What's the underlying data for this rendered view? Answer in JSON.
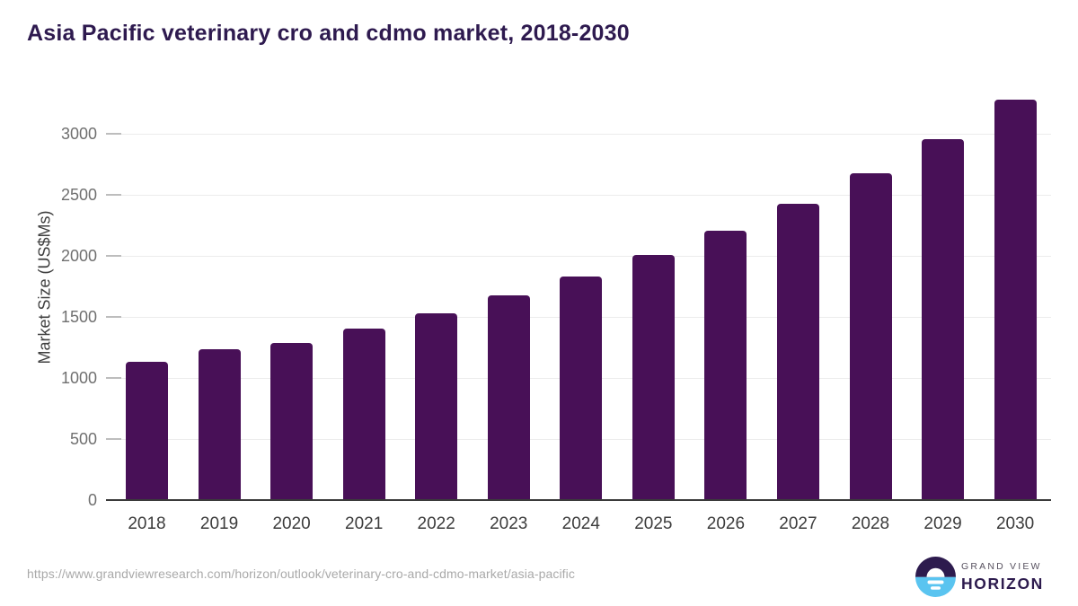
{
  "chart_data": {
    "type": "bar",
    "title": "Asia Pacific veterinary cro and cdmo market, 2018-2030",
    "categories": [
      "2018",
      "2019",
      "2020",
      "2021",
      "2022",
      "2023",
      "2024",
      "2025",
      "2026",
      "2027",
      "2028",
      "2029",
      "2030"
    ],
    "values": [
      1130,
      1235,
      1290,
      1405,
      1530,
      1675,
      1830,
      2005,
      2205,
      2425,
      2675,
      2955,
      3280
    ],
    "xlabel": "",
    "ylabel": "Market Size (US$Ms)",
    "ylim": [
      0,
      3435
    ],
    "yticks": [
      0,
      500,
      1000,
      1500,
      2000,
      2500,
      3000
    ],
    "grid": true,
    "legend": false,
    "bar_color": "#481057"
  },
  "footer": {
    "source_url": "https://www.grandviewresearch.com/horizon/outlook/veterinary-cro-and-cdmo-market/asia-pacific",
    "logo": {
      "line1": "GRAND VIEW",
      "line2": "HORIZON"
    }
  },
  "colors": {
    "bar": "#481057",
    "title": "#2e1a4f",
    "axis_line": "#3a3a3a",
    "gridline": "#ececec",
    "tick_mark": "#bdbdbd",
    "ytick_label": "#6f6f6f",
    "xtick_label": "#3c3c3c",
    "y_axis_title": "#3f3f3f",
    "url": "#a9a9a9",
    "logo_dark": "#2d1b4e",
    "logo_blue": "#5ac4f0",
    "logo_gray": "#57515f"
  }
}
